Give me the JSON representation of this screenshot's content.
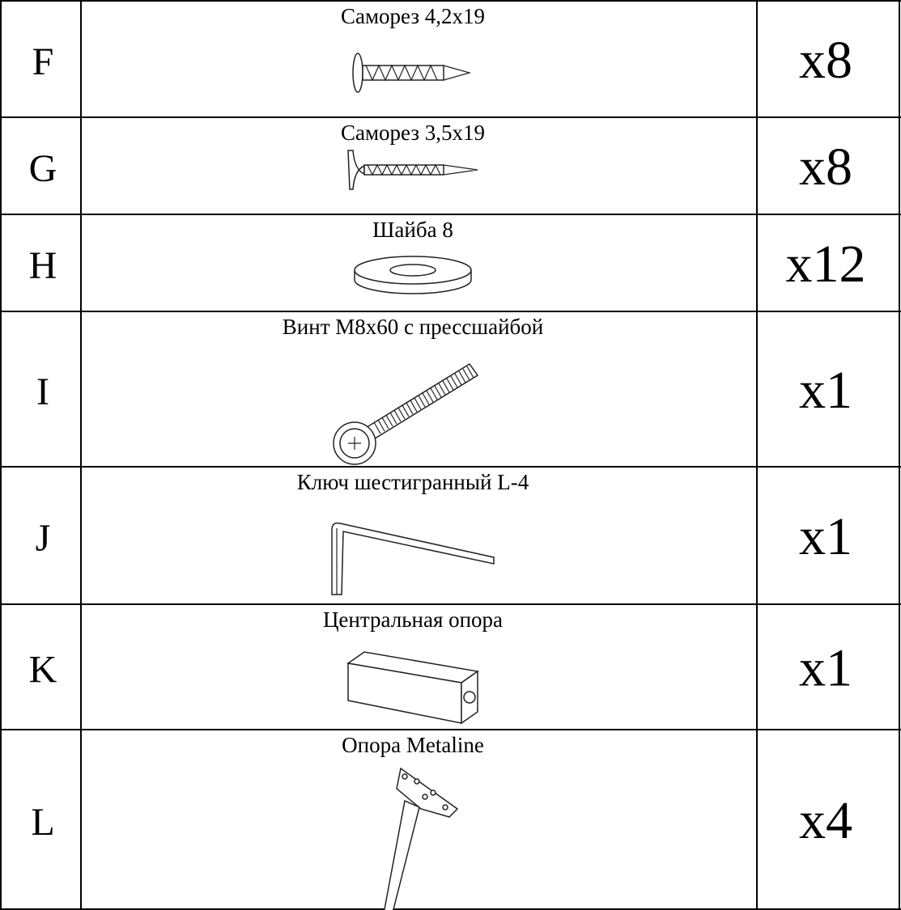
{
  "table": {
    "rows": [
      {
        "letter": "F",
        "name": "Саморез  4,2x19",
        "quantity": "x8"
      },
      {
        "letter": "G",
        "name": "Саморез  3,5x19",
        "quantity": "x8"
      },
      {
        "letter": "H",
        "name": "Шайба 8",
        "quantity": "x12"
      },
      {
        "letter": "I",
        "name": "Винт М8х60 с прессшайбой",
        "quantity": "x1"
      },
      {
        "letter": "J",
        "name": "Ключ шестигранный L-4",
        "quantity": "x1"
      },
      {
        "letter": "K",
        "name": "Центральная опора",
        "quantity": "x1"
      },
      {
        "letter": "L",
        "name": "Опора Metaline",
        "quantity": "x4"
      }
    ]
  }
}
